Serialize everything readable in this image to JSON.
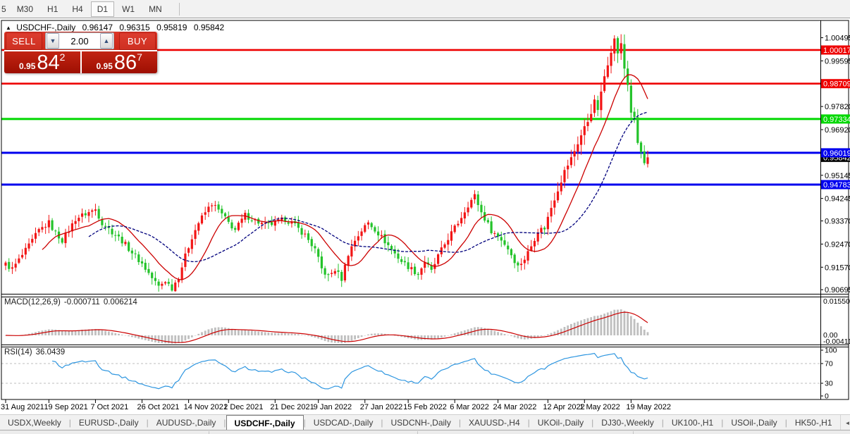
{
  "toolbar": {
    "timeframes": [
      {
        "label": "5",
        "active": false
      },
      {
        "label": "M30",
        "active": false
      },
      {
        "label": "H1",
        "active": false
      },
      {
        "label": "H4",
        "active": false
      },
      {
        "label": "D1",
        "active": true
      },
      {
        "label": "W1",
        "active": false
      },
      {
        "label": "MN",
        "active": false
      }
    ]
  },
  "chart_title": {
    "collapse_icon": "▲",
    "symbol": "USDCHF-,Daily",
    "open": "0.96147",
    "high": "0.96315",
    "low": "0.95819",
    "close": "0.95842"
  },
  "trade_panel": {
    "sell_label": "SELL",
    "buy_label": "BUY",
    "volume": "2.00",
    "sell_price": {
      "prefix": "0.95",
      "big": "84",
      "sup": "2"
    },
    "buy_price": {
      "prefix": "0.95",
      "big": "86",
      "sup": "7"
    }
  },
  "indicators": {
    "macd": {
      "label": "MACD(12,26,9)",
      "value_main": "-0.000711",
      "value_signal": "0.006214",
      "axis_labels": [
        "0.015504",
        "0.00",
        "-0.004118"
      ]
    },
    "rsi": {
      "label": "RSI(14)",
      "value": "36.0439",
      "axis_labels": [
        "100",
        "70",
        "30",
        "0"
      ]
    }
  },
  "price_axis": {
    "labels": [
      "1.00495",
      "0.99595",
      "0.97820",
      "0.96920",
      "0.95145",
      "0.94245",
      "0.93370",
      "0.92470",
      "0.91570",
      "0.90695"
    ],
    "current_price": {
      "text": "0.95842",
      "bg": "#000000"
    }
  },
  "levels": [
    {
      "price": "1.00017",
      "color": "#ee0000"
    },
    {
      "price": "0.98709",
      "color": "#ee0000"
    },
    {
      "price": "0.97334",
      "color": "#00d800"
    },
    {
      "price": "0.96019",
      "color": "#0000ee"
    },
    {
      "price": "0.94783",
      "color": "#0000ee"
    }
  ],
  "time_axis": [
    [
      0,
      "31 Aug 2021"
    ],
    [
      13,
      "19 Sep 2021"
    ],
    [
      27,
      "7 Oct 2021"
    ],
    [
      41,
      "26 Oct 2021"
    ],
    [
      55,
      "14 Nov 2021"
    ],
    [
      67,
      "2 Dec 2021"
    ],
    [
      81,
      "21 Dec 2021"
    ],
    [
      94,
      "9 Jan 2022"
    ],
    [
      108,
      "27 Jan 2022"
    ],
    [
      121,
      "15 Feb 2022"
    ],
    [
      135,
      "6 Mar 2022"
    ],
    [
      148,
      "24 Mar 2022"
    ],
    [
      163,
      "12 Apr 2022"
    ],
    [
      174,
      "1 May 2022"
    ],
    [
      188,
      "19 May 2022"
    ]
  ],
  "tabs": {
    "items": [
      {
        "label": "USDX,Weekly",
        "active": false
      },
      {
        "label": "EURUSD-,Daily",
        "active": false
      },
      {
        "label": "AUDUSD-,Daily",
        "active": false
      },
      {
        "label": "USDCHF-,Daily",
        "active": true
      },
      {
        "label": "USDCAD-,Daily",
        "active": false
      },
      {
        "label": "USDCNH-,Daily",
        "active": false
      },
      {
        "label": "XAUUSD-,H4",
        "active": false
      },
      {
        "label": "UKOil-,Daily",
        "active": false
      },
      {
        "label": "DJ30-,Weekly",
        "active": false
      },
      {
        "label": "UK100-,H1",
        "active": false
      },
      {
        "label": "USOil-,Daily",
        "active": false
      },
      {
        "label": "HK50-,H1",
        "active": false
      }
    ],
    "scroll_left": "◄",
    "scroll_right": "►"
  },
  "chart_data": {
    "type": "candlestick",
    "symbol": "USDCHF-",
    "period": "Daily",
    "displayed_ohlc": {
      "open": 0.96147,
      "high": 0.96315,
      "low": 0.95819,
      "close": 0.95842
    },
    "bars": 194,
    "price_range": [
      0.9059,
      1.0114
    ],
    "close_anchors": [
      [
        0,
        0.9168
      ],
      [
        2,
        0.915
      ],
      [
        4,
        0.9185
      ],
      [
        7,
        0.924
      ],
      [
        10,
        0.93
      ],
      [
        13,
        0.933
      ],
      [
        15,
        0.929
      ],
      [
        17,
        0.9262
      ],
      [
        19,
        0.93
      ],
      [
        21,
        0.9345
      ],
      [
        24,
        0.9365
      ],
      [
        27,
        0.9382
      ],
      [
        29,
        0.933
      ],
      [
        32,
        0.9295
      ],
      [
        35,
        0.926
      ],
      [
        38,
        0.9215
      ],
      [
        41,
        0.917
      ],
      [
        44,
        0.9115
      ],
      [
        46,
        0.9082
      ],
      [
        48,
        0.9105
      ],
      [
        50,
        0.9076
      ],
      [
        52,
        0.912
      ],
      [
        54,
        0.92
      ],
      [
        56,
        0.9275
      ],
      [
        58,
        0.933
      ],
      [
        60,
        0.937
      ],
      [
        62,
        0.9405
      ],
      [
        64,
        0.9378
      ],
      [
        67,
        0.933
      ],
      [
        69,
        0.9302
      ],
      [
        72,
        0.936
      ],
      [
        75,
        0.9338
      ],
      [
        78,
        0.932
      ],
      [
        81,
        0.9328
      ],
      [
        84,
        0.9345
      ],
      [
        87,
        0.9318
      ],
      [
        90,
        0.9282
      ],
      [
        93,
        0.9225
      ],
      [
        95,
        0.915
      ],
      [
        97,
        0.912
      ],
      [
        99,
        0.9148
      ],
      [
        101,
        0.9112
      ],
      [
        103,
        0.921
      ],
      [
        105,
        0.9262
      ],
      [
        107,
        0.93
      ],
      [
        109,
        0.933
      ],
      [
        111,
        0.9305
      ],
      [
        114,
        0.9258
      ],
      [
        117,
        0.921
      ],
      [
        119,
        0.918
      ],
      [
        121,
        0.916
      ],
      [
        124,
        0.913
      ],
      [
        126,
        0.918
      ],
      [
        128,
        0.914
      ],
      [
        130,
        0.92
      ],
      [
        133,
        0.927
      ],
      [
        136,
        0.933
      ],
      [
        139,
        0.94
      ],
      [
        141,
        0.9435
      ],
      [
        143,
        0.937
      ],
      [
        146,
        0.93
      ],
      [
        149,
        0.9265
      ],
      [
        151,
        0.923
      ],
      [
        154,
        0.916
      ],
      [
        156,
        0.919
      ],
      [
        158,
        0.924
      ],
      [
        160,
        0.93
      ],
      [
        162,
        0.931
      ],
      [
        164,
        0.939
      ],
      [
        166,
        0.946
      ],
      [
        168,
        0.953
      ],
      [
        170,
        0.958
      ],
      [
        172,
        0.964
      ],
      [
        174,
        0.97
      ],
      [
        175,
        0.9725
      ],
      [
        176,
        0.9762
      ],
      [
        177,
        0.98
      ],
      [
        178,
        0.9772
      ],
      [
        179,
        0.9832
      ],
      [
        180,
        0.99
      ],
      [
        181,
        0.9952
      ],
      [
        182,
        1.0002
      ],
      [
        183,
        1.0042
      ],
      [
        184,
        0.9992
      ],
      [
        185,
        1.0022
      ],
      [
        186,
        0.993
      ],
      [
        187,
        0.9868
      ],
      [
        188,
        0.9762
      ],
      [
        189,
        0.9732
      ],
      [
        190,
        0.964
      ],
      [
        191,
        0.9602
      ],
      [
        192,
        0.956
      ],
      [
        193,
        0.95842
      ]
    ],
    "horizontal_levels": [
      1.00017,
      0.98709,
      0.97334,
      0.96019,
      0.94783
    ],
    "current_bid": 0.95842,
    "moving_averages": [
      {
        "period": 12,
        "color": "#cc0000",
        "style": "solid"
      },
      {
        "period": 26,
        "color": "#00007d",
        "style": "dashed"
      }
    ],
    "macd": {
      "fast": 12,
      "slow": 26,
      "signal": 9,
      "current_main": -0.000711,
      "current_signal": 0.006214,
      "scale_max": 0.015504,
      "scale_min": -0.004118
    },
    "rsi": {
      "period": 14,
      "current": 36.0439,
      "overbought": 70,
      "oversold": 30
    }
  },
  "colors": {
    "bull": "#f21515",
    "bear": "#23c32a",
    "macd_hist": "#bfbfbf",
    "macd_signal": "#cc0000",
    "rsi_line": "#2e96e0",
    "rsi_level": "#bdbdbd"
  }
}
